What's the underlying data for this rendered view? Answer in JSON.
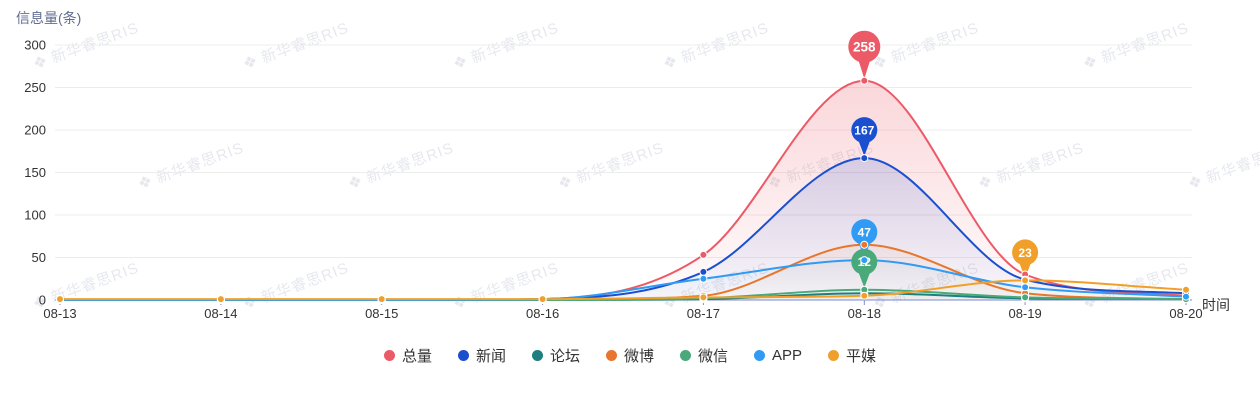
{
  "header": {
    "y_axis_title": "信息量(条)",
    "x_axis_title": "时间"
  },
  "watermark": {
    "logo_glyph": "❖",
    "text": "新华睿思RIS"
  },
  "chart_data": {
    "type": "line",
    "smooth": true,
    "area": true,
    "grid": true,
    "legend_position": "bottom",
    "title": "信息量(条)",
    "xlabel": "时间",
    "ylabel": "信息量(条)",
    "ylim": [
      0,
      300
    ],
    "y_ticks": [
      0,
      50,
      100,
      150,
      200,
      250,
      300
    ],
    "categories": [
      "08-13",
      "08-14",
      "08-15",
      "08-16",
      "08-17",
      "08-18",
      "08-19",
      "08-20"
    ],
    "series": [
      {
        "name": "总量",
        "color": "#ec5a67",
        "values": [
          0,
          0,
          0,
          1,
          53,
          258,
          30,
          5
        ]
      },
      {
        "name": "新闻",
        "color": "#1a4fd0",
        "values": [
          0,
          0,
          0,
          1,
          33,
          167,
          24,
          8
        ]
      },
      {
        "name": "论坛",
        "color": "#1d7f7f",
        "values": [
          0,
          0,
          0,
          0,
          1,
          8,
          2,
          1
        ]
      },
      {
        "name": "微博",
        "color": "#e8762c",
        "values": [
          0,
          0,
          0,
          0,
          5,
          65,
          8,
          1
        ]
      },
      {
        "name": "微信",
        "color": "#4aa97a",
        "values": [
          0,
          0,
          0,
          0,
          2,
          12,
          3,
          1
        ]
      },
      {
        "name": "APP",
        "color": "#2f9bf4",
        "values": [
          0,
          0,
          0,
          1,
          25,
          47,
          15,
          4
        ]
      },
      {
        "name": "平媒",
        "color": "#f0a02a",
        "values": [
          1,
          1,
          1,
          1,
          3,
          5,
          23,
          12
        ]
      }
    ],
    "annotations": [
      {
        "series": "总量",
        "category": "08-18",
        "value": 258,
        "large": true
      },
      {
        "series": "新闻",
        "category": "08-18",
        "value": 167
      },
      {
        "series": "APP",
        "category": "08-18",
        "value": 47
      },
      {
        "series": "微信",
        "category": "08-18",
        "value": 12
      },
      {
        "series": "平媒",
        "category": "08-19",
        "value": 23
      }
    ]
  }
}
